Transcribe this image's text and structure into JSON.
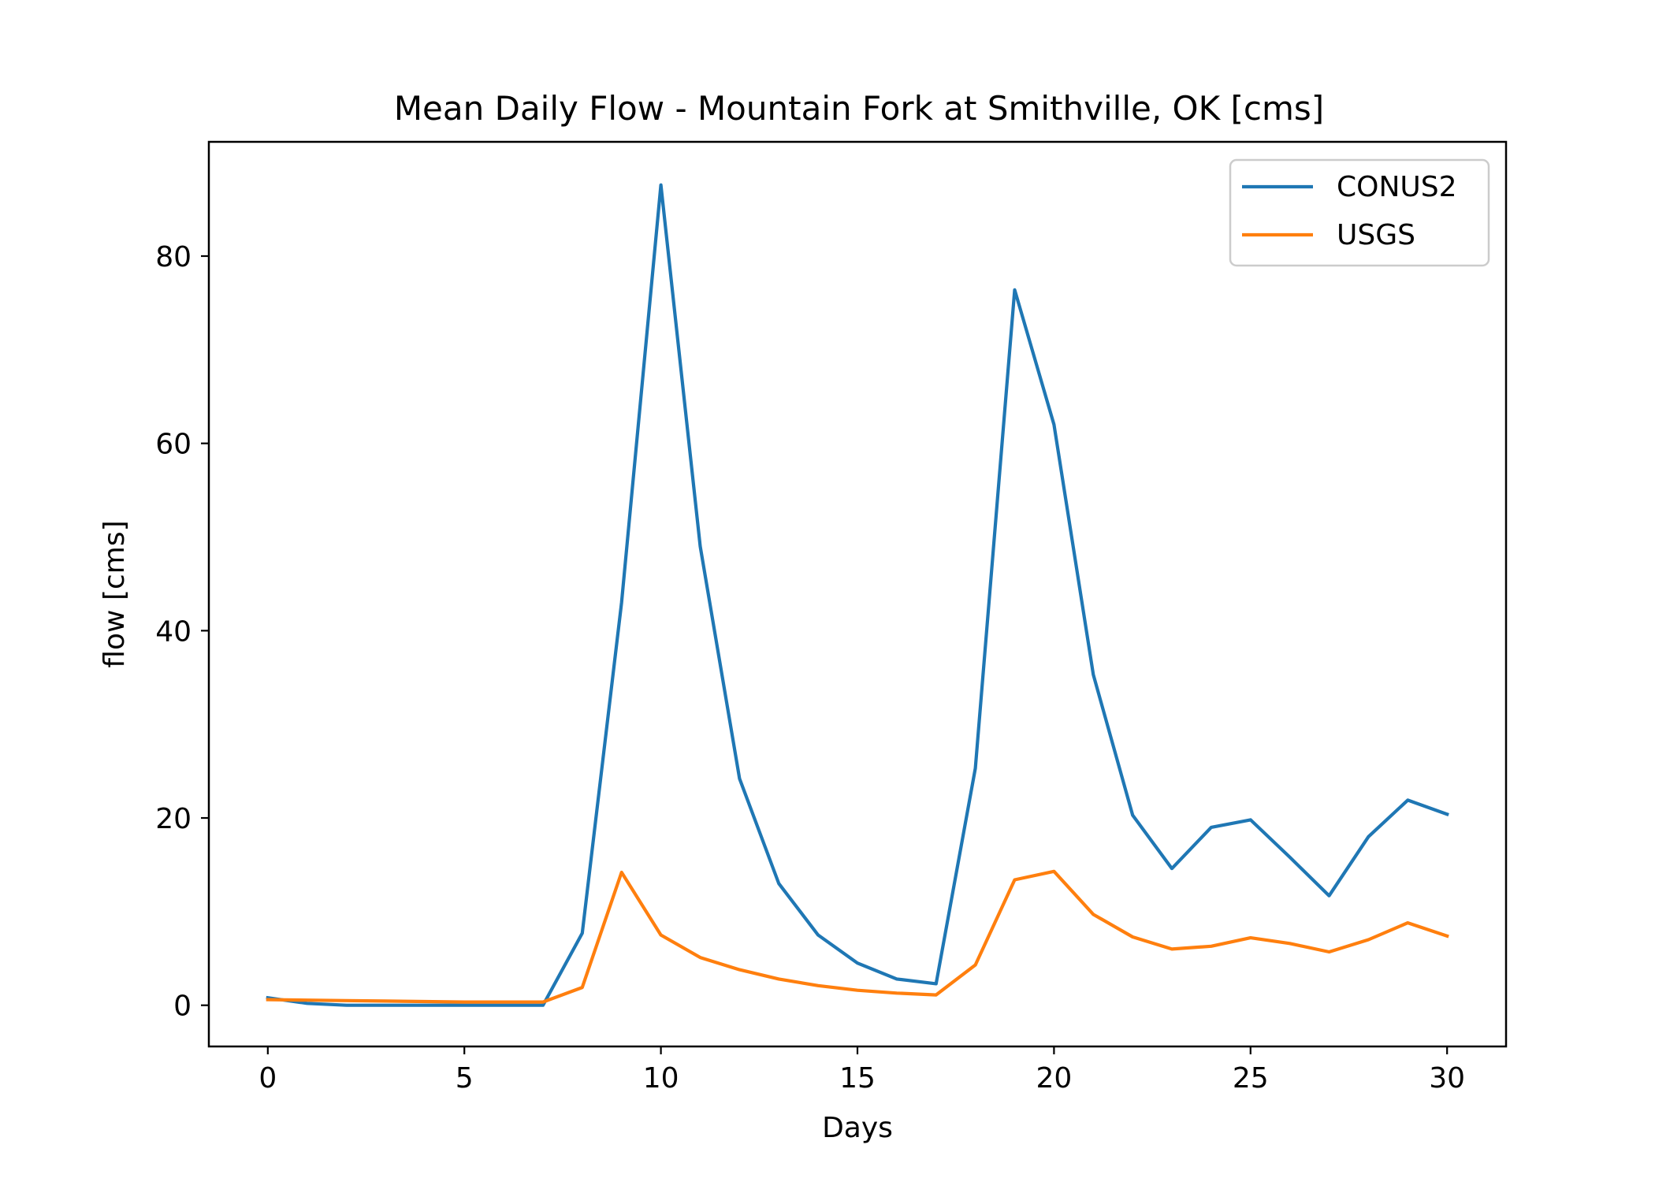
{
  "chart_data": {
    "type": "line",
    "title": "Mean Daily Flow - Mountain Fork at Smithville, OK [cms]",
    "xlabel": "Days",
    "ylabel": "flow [cms]",
    "xlim": [
      -1.5,
      31.5
    ],
    "ylim": [
      -4.4,
      92.2
    ],
    "xticks": [
      0,
      5,
      10,
      15,
      20,
      25,
      30
    ],
    "yticks": [
      0,
      20,
      40,
      60,
      80
    ],
    "grid": false,
    "legend": "top-right",
    "x": [
      0,
      1,
      2,
      3,
      4,
      5,
      6,
      7,
      8,
      9,
      10,
      11,
      12,
      13,
      14,
      15,
      16,
      17,
      18,
      19,
      20,
      21,
      22,
      23,
      24,
      25,
      26,
      27,
      28,
      29,
      30
    ],
    "series": [
      {
        "name": "CONUS2",
        "color": "#1f77b4",
        "values": [
          0.8,
          0.2,
          0,
          0,
          0,
          0,
          0,
          0,
          7.7,
          43,
          87.6,
          49,
          24.2,
          13,
          7.5,
          4.5,
          2.8,
          2.3,
          25.3,
          76.4,
          62,
          35.3,
          20.3,
          14.6,
          19,
          19.8,
          15.8,
          11.7,
          18,
          21.9,
          20.4
        ]
      },
      {
        "name": "USGS",
        "color": "#ff7f0e",
        "values": [
          0.6,
          0.55,
          0.5,
          0.45,
          0.4,
          0.35,
          0.35,
          0.35,
          1.9,
          14.2,
          7.5,
          5.1,
          3.8,
          2.8,
          2.1,
          1.6,
          1.3,
          1.1,
          4.3,
          13.4,
          14.3,
          9.7,
          7.3,
          6,
          6.3,
          7.2,
          6.6,
          5.7,
          7,
          8.8,
          7.4
        ]
      }
    ]
  }
}
